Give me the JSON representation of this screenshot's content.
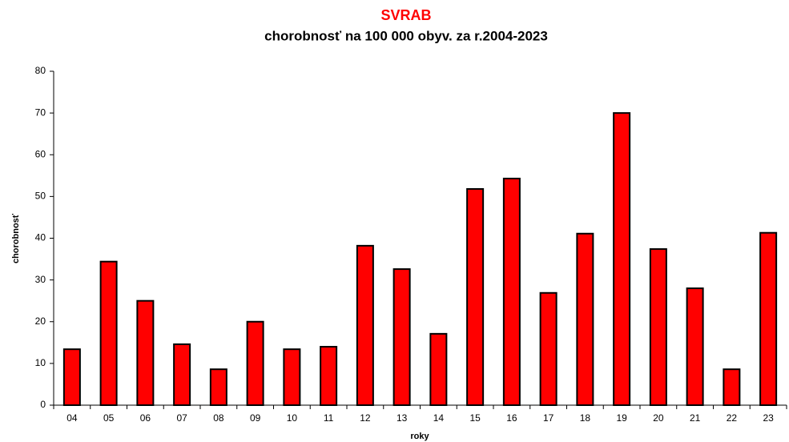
{
  "chart_data": {
    "type": "bar",
    "title": "SVRAB",
    "subtitle": "chorobnosť na 100 000 obyv. za r.2004-2023",
    "x_label": "roky",
    "y_label": "chorobnosť",
    "categories": [
      "04",
      "05",
      "06",
      "07",
      "08",
      "09",
      "10",
      "11",
      "12",
      "13",
      "14",
      "15",
      "16",
      "17",
      "18",
      "19",
      "20",
      "21",
      "22",
      "23"
    ],
    "values": [
      13.4,
      34.4,
      25.0,
      14.6,
      8.6,
      20.0,
      13.4,
      14.0,
      38.2,
      32.6,
      17.1,
      51.8,
      54.3,
      26.9,
      41.1,
      70.0,
      37.4,
      28.0,
      8.6,
      41.3
    ],
    "color": "#ff0000",
    "ylim": [
      0,
      80
    ],
    "yticks": [
      0,
      10,
      20,
      30,
      40,
      50,
      60,
      70,
      80
    ],
    "grid": false
  }
}
